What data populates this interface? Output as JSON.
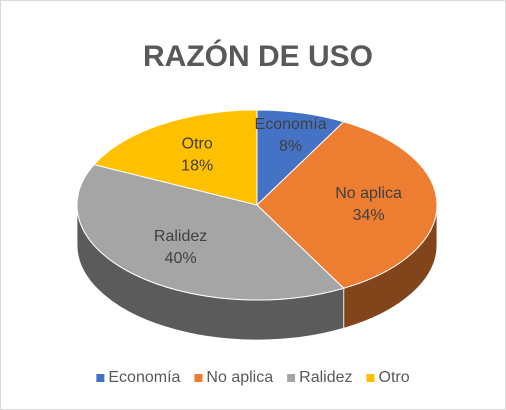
{
  "chart_data": {
    "type": "pie",
    "title": "RAZÓN DE USO",
    "categories": [
      "Economía",
      "No aplica",
      "Ralidez",
      "Otro"
    ],
    "values": [
      8,
      34,
      40,
      18
    ],
    "value_labels": [
      "8%",
      "34%",
      "40%",
      "18%"
    ],
    "colors": [
      "#4472c4",
      "#ed7d31",
      "#a5a5a5",
      "#ffc000"
    ],
    "legend": "bottom"
  }
}
